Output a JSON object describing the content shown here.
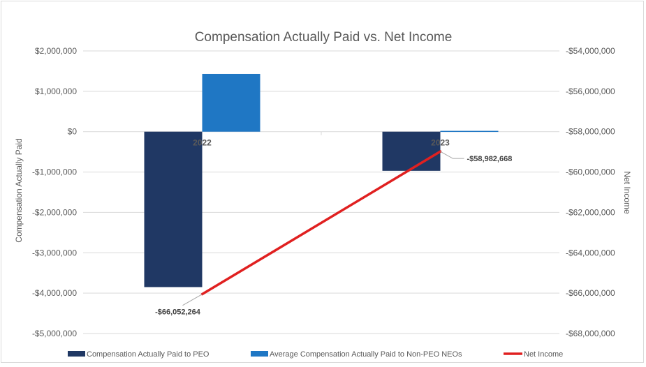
{
  "chart_data": {
    "type": "bar",
    "title": "Compensation Actually Paid vs. Net Income",
    "categories": [
      "2022",
      "2023"
    ],
    "ylabel": "Compensation Actually Paid",
    "y2label": "Net Income",
    "ylim": [
      -5000000,
      2000000
    ],
    "y2lim": [
      -68000000,
      -54000000
    ],
    "yticks": [
      2000000,
      1000000,
      0,
      -1000000,
      -2000000,
      -3000000,
      -4000000,
      -5000000
    ],
    "yticklabels": [
      "$2,000,000",
      "$1,000,000",
      "$0",
      "-$1,000,000",
      "-$2,000,000",
      "-$3,000,000",
      "-$4,000,000",
      "-$5,000,000"
    ],
    "y2ticks": [
      -54000000,
      -56000000,
      -58000000,
      -60000000,
      -62000000,
      -64000000,
      -66000000,
      -68000000
    ],
    "y2ticklabels": [
      "-$54,000,000",
      "-$56,000,000",
      "-$58,000,000",
      "-$60,000,000",
      "-$62,000,000",
      "-$64,000,000",
      "-$66,000,000",
      "-$68,000,000"
    ],
    "grid": true,
    "legend_position": "bottom",
    "series": [
      {
        "name": "Compensation Actually Paid to PEO",
        "type": "bar",
        "axis": "left",
        "color": "#203864",
        "values": [
          -3850000,
          -970000
        ]
      },
      {
        "name": "Average Compensation Actually Paid to Non-PEO NEOs",
        "type": "bar",
        "axis": "left",
        "color": "#1f77c4",
        "values": [
          1430000,
          20000
        ]
      },
      {
        "name": "Net Income",
        "type": "line",
        "axis": "right",
        "color": "#e02020",
        "values": [
          -66052264,
          -58982668
        ],
        "data_labels": [
          "-$66,052,264",
          "-$58,982,668"
        ]
      }
    ]
  }
}
